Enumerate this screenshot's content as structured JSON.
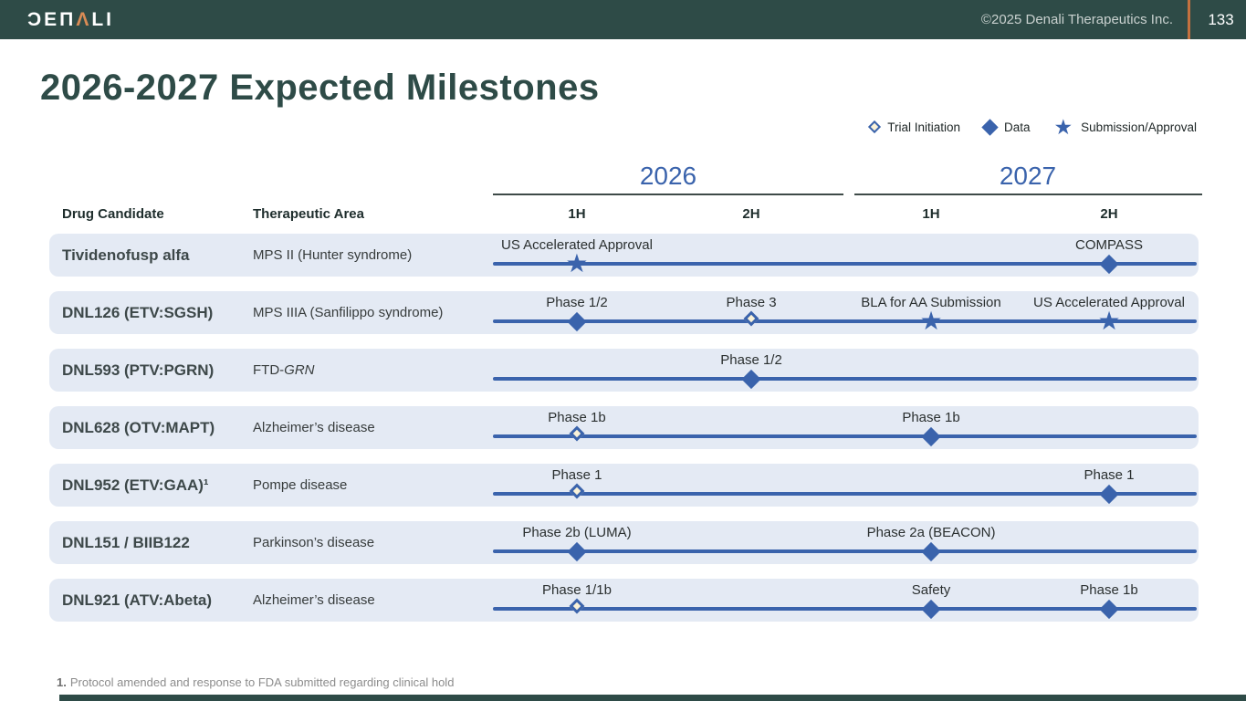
{
  "header": {
    "logo": "DENALI",
    "logo_display_left": "ƆEΠ",
    "logo_display_accent": "Λ",
    "logo_display_right": "LI",
    "copyright": "©2025 Denali Therapeutics Inc.",
    "page_number": "133"
  },
  "title": "2026-2027 Expected Milestones",
  "legend": {
    "items": [
      {
        "type": "trial-initiation",
        "label": "Trial Initiation"
      },
      {
        "type": "data",
        "label": "Data"
      },
      {
        "type": "submission-approval",
        "label": "Submission/Approval"
      }
    ]
  },
  "table": {
    "drug_col_header": "Drug Candidate",
    "area_col_header": "Therapeutic Area",
    "years": [
      {
        "label": "2026",
        "halves": [
          "1H",
          "2H"
        ]
      },
      {
        "label": "2027",
        "halves": [
          "1H",
          "2H"
        ]
      }
    ]
  },
  "rows": [
    {
      "drug": "Tividenofusp alfa",
      "area": "MPS II (Hunter syndrome)",
      "milestones": [
        {
          "slot": 0,
          "type": "submission-approval",
          "label": "US Accelerated Approval"
        },
        {
          "slot": 3,
          "type": "data",
          "label": "COMPASS"
        }
      ]
    },
    {
      "drug": "DNL126 (ETV:SGSH)",
      "area": "MPS IIIA (Sanfilippo syndrome)",
      "milestones": [
        {
          "slot": 0,
          "type": "data",
          "label": "Phase 1/2"
        },
        {
          "slot": 1,
          "type": "trial-initiation",
          "label": "Phase 3"
        },
        {
          "slot": 2,
          "type": "submission-approval",
          "label": "BLA for AA Submission"
        },
        {
          "slot": 3,
          "type": "submission-approval",
          "label": "US Accelerated Approval"
        }
      ]
    },
    {
      "drug": "DNL593 (PTV:PGRN)",
      "area": "FTD-",
      "area_italic": "GRN",
      "milestones": [
        {
          "slot": 1,
          "type": "data",
          "label": "Phase 1/2"
        }
      ]
    },
    {
      "drug": "DNL628 (OTV:MAPT)",
      "area": "Alzheimer’s disease",
      "milestones": [
        {
          "slot": 0,
          "type": "trial-initiation",
          "label": "Phase 1b"
        },
        {
          "slot": 2,
          "type": "data",
          "label": "Phase 1b"
        }
      ]
    },
    {
      "drug": "DNL952 (ETV:GAA)¹",
      "area": "Pompe disease",
      "milestones": [
        {
          "slot": 0,
          "type": "trial-initiation",
          "label": "Phase 1"
        },
        {
          "slot": 3,
          "type": "data",
          "label": "Phase 1"
        }
      ]
    },
    {
      "drug": "DNL151 / BIIB122",
      "area": "Parkinson’s disease",
      "milestones": [
        {
          "slot": 0,
          "type": "data",
          "label": "Phase 2b (LUMA)"
        },
        {
          "slot": 2,
          "type": "data",
          "label": "Phase 2a (BEACON)"
        }
      ]
    },
    {
      "drug": "DNL921 (ATV:Abeta)",
      "area": "Alzheimer’s disease",
      "milestones": [
        {
          "slot": 0,
          "type": "trial-initiation",
          "label": "Phase 1/1b"
        },
        {
          "slot": 2,
          "type": "data",
          "label": "Safety"
        },
        {
          "slot": 3,
          "type": "data",
          "label": "Phase 1b"
        }
      ]
    }
  ],
  "footnote": {
    "marker": "1.",
    "text": "Protocol amended and response to FDA submitted regarding clinical hold"
  },
  "colors": {
    "accent_blue": "#3A63AC",
    "teal": "#2E4B47",
    "orange": "#C4713F",
    "row_bg": "#E4EAF4",
    "open_diamond_fill": "#FAF2D8"
  }
}
